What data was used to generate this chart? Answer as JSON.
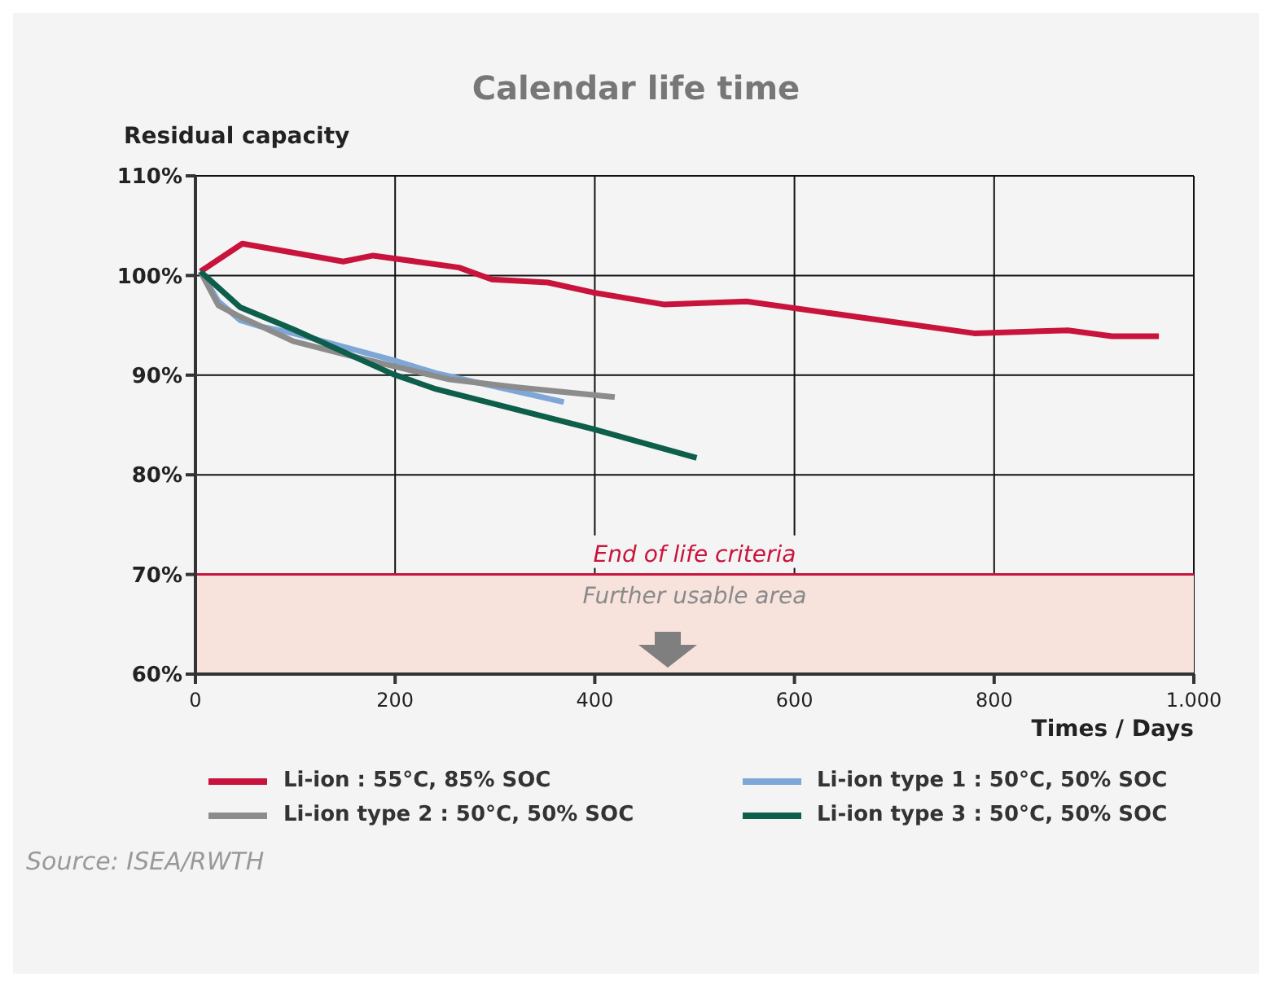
{
  "chart_data": {
    "type": "line",
    "title": "Calendar life time",
    "ylabel": "Residual capacity",
    "xlabel": "Times / Days",
    "xlim": [
      0,
      1000
    ],
    "xticks": [
      0,
      200,
      400,
      600,
      800,
      {
        "value": 1000,
        "label": "1.000"
      }
    ],
    "ylim": [
      60,
      110
    ],
    "yticks": [
      {
        "value": 60,
        "label": "60%"
      },
      {
        "value": 70,
        "label": "70%"
      },
      {
        "value": 80,
        "label": "80%"
      },
      {
        "value": 90,
        "label": "90%"
      },
      {
        "value": 100,
        "label": "100%"
      },
      {
        "value": 110,
        "label": "110%"
      }
    ],
    "grid": true,
    "legend": "bottom",
    "line_style": "solid",
    "marker": "none",
    "series": [
      {
        "name": "Li-ion : 55°C, 85% SOC",
        "color": "#c8143c",
        "x": [
          5,
          47,
          148,
          178,
          264,
          297,
          353,
          398,
          469,
          552,
          780,
          874,
          918,
          965
        ],
        "values": [
          100.4,
          103.2,
          101.4,
          102.0,
          100.8,
          99.6,
          99.3,
          98.3,
          97.1,
          97.4,
          94.2,
          94.5,
          93.9,
          93.9
        ]
      },
      {
        "name": "Li-ion type 1 : 50°C, 50% SOC",
        "color": "#7ea6d6",
        "x": [
          5,
          23,
          45,
          65,
          98,
          198,
          241,
          369
        ],
        "values": [
          100.4,
          97.4,
          95.5,
          94.9,
          94.2,
          91.5,
          90.2,
          87.3
        ]
      },
      {
        "name": "Li-ion type 2 : 50°C, 50% SOC",
        "color": "#8c8c8c",
        "x": [
          5,
          23,
          42,
          98,
          153,
          253,
          320,
          420
        ],
        "values": [
          100.4,
          97.0,
          96.0,
          93.4,
          92.0,
          89.6,
          88.8,
          87.8
        ]
      },
      {
        "name": "Li-ion type 3 : 50°C, 50% SOC",
        "color": "#0d5e4a",
        "x": [
          5,
          45,
          98,
          198,
          241,
          398,
          502
        ],
        "values": [
          100.4,
          96.8,
          94.6,
          90.1,
          88.6,
          84.6,
          81.7
        ]
      }
    ],
    "ref_lines": [
      {
        "axis": "y",
        "value": 70,
        "label": "End of life criteria",
        "color": "#c8143c"
      }
    ],
    "bands": [
      {
        "axis": "y",
        "from": 60,
        "to": 70,
        "label": "Further usable area",
        "color": "#f7e3dc"
      }
    ],
    "annotations": [
      "Source: ISEA/RWTH"
    ]
  }
}
